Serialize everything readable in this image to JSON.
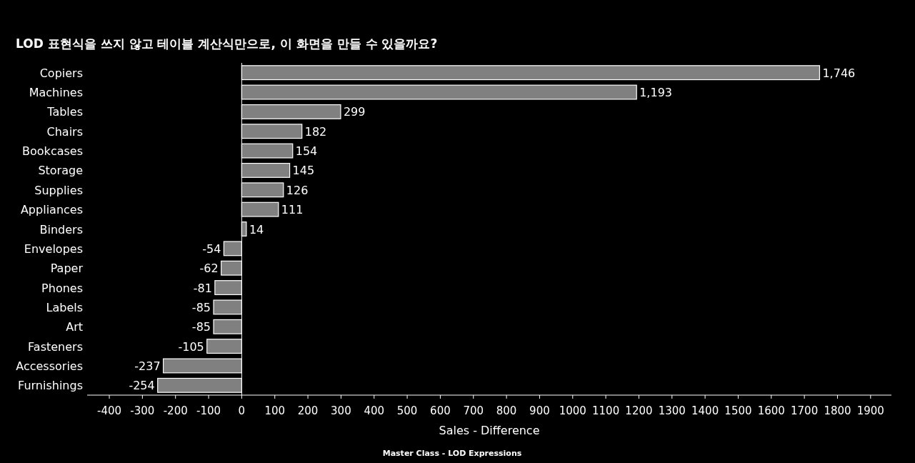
{
  "chart_data": {
    "type": "bar",
    "orientation": "horizontal",
    "title": "LOD 표현식을 쓰지 않고 테이블 계산식만으로, 이 화면을 만들 수 있을까요?",
    "xlabel": "Sales - Difference",
    "categories": [
      "Copiers",
      "Machines",
      "Tables",
      "Chairs",
      "Bookcases",
      "Storage",
      "Supplies",
      "Appliances",
      "Binders",
      "Envelopes",
      "Paper",
      "Phones",
      "Labels",
      "Art",
      "Fasteners",
      "Accessories",
      "Furnishings"
    ],
    "values": [
      1746,
      1193,
      299,
      182,
      154,
      145,
      126,
      111,
      14,
      -54,
      -62,
      -81,
      -85,
      -85,
      -105,
      -237,
      -254
    ],
    "value_labels": [
      "1,746",
      "1,193",
      "299",
      "182",
      "154",
      "145",
      "126",
      "111",
      "14",
      "-54",
      "-62",
      "-81",
      "-85",
      "-85",
      "-105",
      "-237",
      "-254"
    ],
    "color": "#808080",
    "xlim": [
      -467,
      1963
    ],
    "xticks": [
      -400,
      -300,
      -200,
      -100,
      0,
      100,
      200,
      300,
      400,
      500,
      600,
      700,
      800,
      900,
      1000,
      1100,
      1200,
      1300,
      1400,
      1500,
      1600,
      1700,
      1800,
      1900
    ],
    "annotations": [
      "Master Class - LOD Expressions"
    ]
  }
}
